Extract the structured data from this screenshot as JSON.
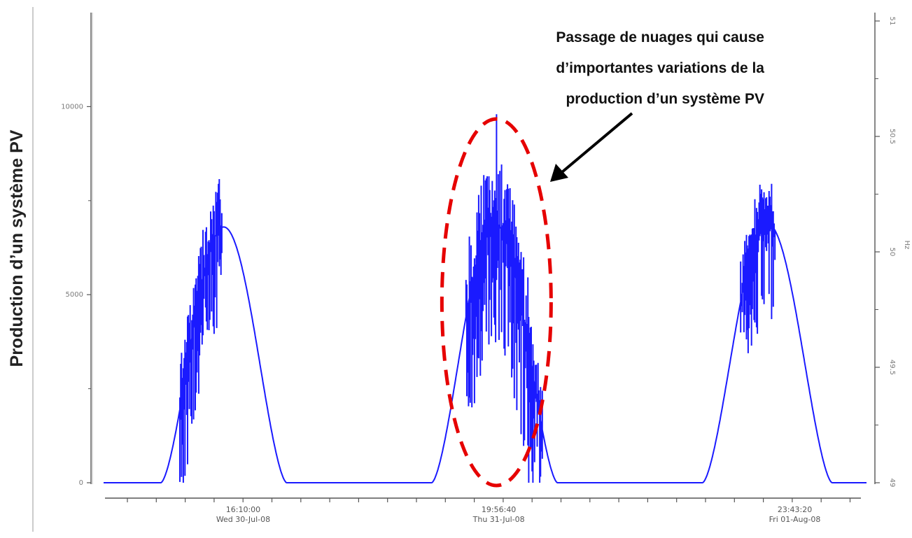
{
  "chart_data": {
    "type": "line",
    "ylabel": "Production  d’un système PV",
    "yticks": [
      0,
      5000,
      10000
    ],
    "ytick_labels": [
      "0",
      "5000",
      "10000"
    ],
    "ylim": [
      0,
      12500
    ],
    "right_ticks": [
      "49",
      "49.5",
      "50",
      "50.5",
      "51"
    ],
    "right_axis_label": "Hz",
    "x_ticks": [
      {
        "time": "16:10:00",
        "date": "Wed 30-Jul-08"
      },
      {
        "time": "19:56:40",
        "date": "Thu 31-Jul-08"
      },
      {
        "time": "23:43:20",
        "date": "Fri 01-Aug-08"
      }
    ],
    "annotation": {
      "lines": [
        "Passage de nuages qui cause",
        "d’importantes variations de la",
        "production  d’un système PV"
      ]
    },
    "series": [
      {
        "color": "#1a1aff",
        "days": [
          {
            "start": 0.075,
            "end": 0.24,
            "peak": 6800,
            "noisy": true,
            "noise_range": [
              0.1,
              0.155
            ],
            "noise_amp": 2700,
            "seed": 3
          },
          {
            "start": 0.43,
            "end": 0.595,
            "peak": 6900,
            "noisy": true,
            "noise_range": [
              0.475,
              0.575
            ],
            "noise_amp": 3600,
            "seed": 7
          },
          {
            "start": 0.785,
            "end": 0.955,
            "peak": 6900,
            "noisy": true,
            "noise_range": [
              0.835,
              0.88
            ],
            "noise_amp": 2500,
            "seed": 11
          }
        ],
        "spikes": [
          {
            "x": 0.515,
            "value": 9800
          },
          {
            "x": 0.857,
            "value": 7200
          }
        ]
      }
    ],
    "highlight": {
      "center_x": 0.515,
      "center_value": 4800,
      "shape": "dashed-ellipse",
      "color": "#e60000"
    }
  }
}
